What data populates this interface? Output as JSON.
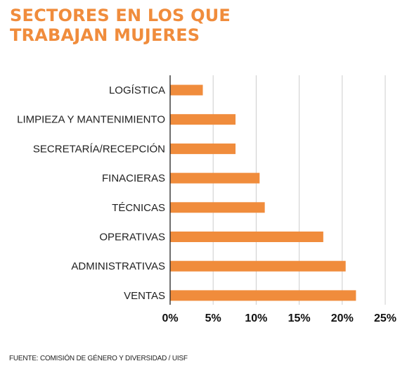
{
  "header": {
    "title_line1": "SECTORES EN LOS QUE",
    "title_line2": "TRABAJAN MUJERES"
  },
  "source": "FUENTE: COMISIÓN DE GÉNERO Y DIVERSIDAD / UISF",
  "colors": {
    "bar": "#f08c3c",
    "title": "#f08c3c",
    "grid": "#cccccc"
  },
  "chart_data": {
    "type": "bar",
    "orientation": "horizontal",
    "categories": [
      "LOGÍSTICA",
      "LIMPIEZA Y MANTENIMIENTO",
      "SECRETARÍA/RECEPCIÓN",
      "FINACIERAS",
      "TÉCNICAS",
      "OPERATIVAS",
      "ADMINISTRATIVAS",
      "VENTAS"
    ],
    "values": [
      3.8,
      7.6,
      7.6,
      10.4,
      11.0,
      17.8,
      20.4,
      21.6
    ],
    "xlim": [
      0,
      25
    ],
    "x_ticks": [
      "0%",
      "5%",
      "10%",
      "15%",
      "20%",
      "25%"
    ],
    "grid": true
  }
}
